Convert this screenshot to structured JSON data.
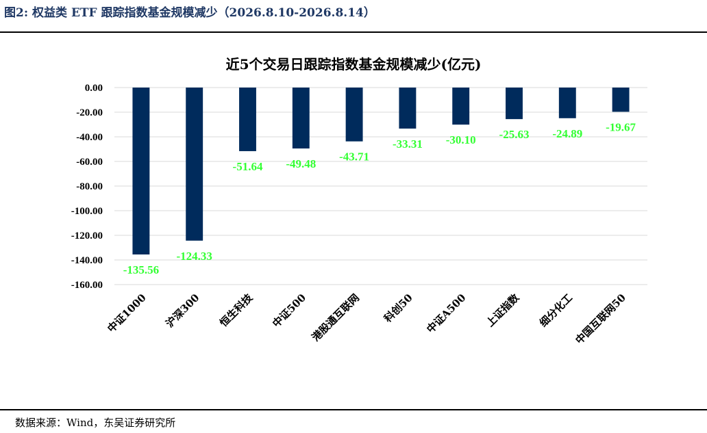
{
  "figure_caption": "图2:  权益类 ETF 跟踪指数基金规模减少（2026.8.10-2026.8.14）",
  "source_note": "数据来源：Wind，东吴证券研究所",
  "chart_data": {
    "type": "bar",
    "title": "近5个交易日跟踪指数基金规模减少(亿元)",
    "xlabel": "",
    "ylabel": "",
    "categories": [
      "中证1000",
      "沪深300",
      "恒生科技",
      "中证500",
      "港股通互联网",
      "科创50",
      "中证A500",
      "上证指数",
      "细分化工",
      "中国互联网50"
    ],
    "values": [
      -135.56,
      -124.33,
      -51.64,
      -49.48,
      -43.71,
      -33.31,
      -30.1,
      -25.63,
      -24.89,
      -19.67
    ],
    "data_labels": [
      "-135.56",
      "-124.33",
      "-51.64",
      "-49.48",
      "-43.71",
      "-33.31",
      "-30.10",
      "-25.63",
      "-24.89",
      "-19.67"
    ],
    "yticks": [
      "0.00",
      "-20.00",
      "-40.00",
      "-60.00",
      "-80.00",
      "-100.00",
      "-120.00",
      "-140.00",
      "-160.00"
    ],
    "ylim": [
      -160,
      0
    ],
    "grid": true,
    "legend": "none",
    "bar_color": "#002b5c",
    "label_color": "#33ff33"
  }
}
